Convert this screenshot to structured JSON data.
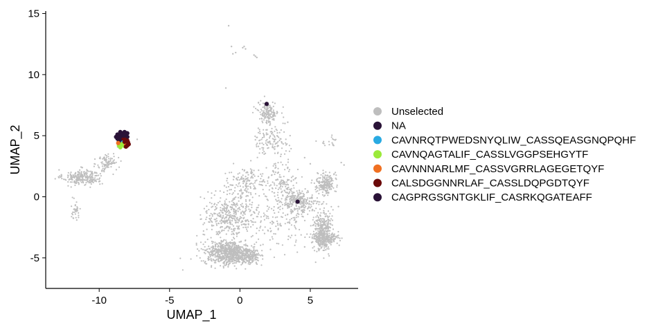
{
  "chart_data": {
    "type": "scatter",
    "xlabel": "UMAP_1",
    "ylabel": "UMAP_2",
    "xlim": [
      -13.8,
      8.4
    ],
    "ylim": [
      -7.5,
      15.2
    ],
    "xticks": [
      -10,
      -5,
      0,
      5
    ],
    "xtick_labels": [
      "-10",
      "-5",
      "0",
      "5"
    ],
    "yticks": [
      -5,
      0,
      5,
      10,
      15
    ],
    "ytick_labels": [
      "-5",
      "0",
      "5",
      "10",
      "15"
    ],
    "grid": false,
    "legend_position": "right",
    "legend": [
      {
        "label": "Unselected",
        "color": "#BEBEBE"
      },
      {
        "label": "NA",
        "color": "#2A1337"
      },
      {
        "label": "CAVNRQTPWEDSNYQLIW_CASSQEASGNQPQHF",
        "color": "#29AAE2"
      },
      {
        "label": "CAVNQAGTALIF_CASSLVGGPSEHGYTF",
        "color": "#9BEA3A"
      },
      {
        "label": "CAVNNNARLMF_CASSVGRRLAGEGETQYF",
        "color": "#F07021"
      },
      {
        "label": "CALSDGGNNRLAF_CASSLDQPGDTQYF",
        "color": "#6B0A0A"
      },
      {
        "label": "CAGPRGSGNTGKLIF_CASRKQGATEAFF",
        "color": "#2A1337"
      }
    ],
    "series": [
      {
        "legend_index": 0,
        "clusters": [
          {
            "cx": -11.2,
            "cy": 1.6,
            "sx": 1.1,
            "sy": 0.5,
            "n": 260
          },
          {
            "cx": -9.4,
            "cy": 2.8,
            "sx": 0.6,
            "sy": 0.6,
            "n": 90
          },
          {
            "cx": -11.7,
            "cy": -1.1,
            "sx": 0.3,
            "sy": 0.6,
            "n": 35
          },
          {
            "cx": -8.4,
            "cy": 4.5,
            "sx": 0.3,
            "sy": 0.4,
            "n": 50
          },
          {
            "cx": 2.0,
            "cy": 6.9,
            "sx": 0.6,
            "sy": 0.7,
            "n": 160
          },
          {
            "cx": 2.2,
            "cy": 4.6,
            "sx": 1.0,
            "sy": 0.9,
            "n": 120
          },
          {
            "cx": 3.0,
            "cy": 1.4,
            "sx": 0.8,
            "sy": 1.3,
            "n": 110
          },
          {
            "cx": 0.5,
            "cy": 1.2,
            "sx": 1.2,
            "sy": 1.0,
            "n": 140
          },
          {
            "cx": -0.6,
            "cy": -1.6,
            "sx": 1.6,
            "sy": 1.5,
            "n": 420
          },
          {
            "cx": -0.9,
            "cy": -4.6,
            "sx": 1.3,
            "sy": 0.8,
            "n": 650
          },
          {
            "cx": 0.6,
            "cy": -4.9,
            "sx": 0.7,
            "sy": 0.5,
            "n": 180
          },
          {
            "cx": 4.2,
            "cy": -0.4,
            "sx": 1.0,
            "sy": 0.7,
            "n": 230
          },
          {
            "cx": 6.1,
            "cy": 1.1,
            "sx": 0.5,
            "sy": 0.7,
            "n": 210
          },
          {
            "cx": 5.9,
            "cy": -2.8,
            "sx": 0.5,
            "sy": 1.4,
            "n": 330
          },
          {
            "cx": 6.0,
            "cy": -3.4,
            "sx": 0.8,
            "sy": 0.4,
            "n": 160
          },
          {
            "cx": 3.2,
            "cy": -1.5,
            "sx": 1.5,
            "sy": 2.0,
            "n": 160
          },
          {
            "cx": 6.3,
            "cy": 4.5,
            "sx": 0.6,
            "sy": 0.4,
            "n": 15
          }
        ],
        "points": [
          [
            -0.8,
            14.0
          ],
          [
            -0.6,
            12.3
          ],
          [
            0.2,
            12.2
          ],
          [
            0.4,
            12.1
          ],
          [
            -0.3,
            11.8
          ],
          [
            1.0,
            11.6
          ],
          [
            1.2,
            11.4
          ],
          [
            1.1,
            11.5
          ],
          [
            -0.5,
            11.7
          ],
          [
            0.3,
            12.3
          ],
          [
            -1.0,
            8.9
          ],
          [
            3.4,
            6.1
          ],
          [
            3.2,
            6.0
          ],
          [
            5.9,
            4.4
          ],
          [
            6.6,
            4.3
          ],
          [
            7.2,
            2.8
          ],
          [
            7.4,
            2.6
          ],
          [
            4.6,
            3.2
          ],
          [
            5.0,
            2.7
          ],
          [
            -1.1,
            0.9
          ],
          [
            -0.9,
            1.5
          ],
          [
            3.4,
            2.4
          ],
          [
            7.0,
            -0.8
          ],
          [
            4.6,
            -4.1
          ],
          [
            -7.3,
            4.7
          ]
        ]
      },
      {
        "legend_index": 1,
        "points": [
          [
            -8.6,
            5.0
          ],
          [
            -8.4,
            4.8
          ],
          [
            -8.3,
            5.2
          ],
          [
            -8.1,
            5.0
          ],
          [
            -8.2,
            5.3
          ],
          [
            -8.5,
            4.7
          ],
          [
            -8.7,
            5.1
          ],
          [
            -8.0,
            4.9
          ],
          [
            -8.3,
            4.6
          ],
          [
            -8.6,
            4.5
          ],
          [
            -8.1,
            4.5
          ],
          [
            -8.4,
            5.1
          ],
          [
            -8.2,
            4.3
          ],
          [
            -8.0,
            5.2
          ],
          [
            -8.8,
            4.9
          ],
          [
            -8.5,
            5.3
          ],
          [
            -8.3,
            4.9
          ]
        ]
      },
      {
        "legend_index": 2,
        "points": [
          [
            -8.3,
            4.45
          ]
        ]
      },
      {
        "legend_index": 3,
        "points": [
          [
            -8.6,
            4.2
          ],
          [
            -8.4,
            4.3
          ],
          [
            -8.2,
            4.15
          ],
          [
            -8.5,
            4.05
          ],
          [
            -8.3,
            4.35
          ]
        ]
      },
      {
        "legend_index": 4,
        "points": [
          [
            -8.65,
            4.4
          ],
          [
            -8.1,
            4.25
          ]
        ]
      },
      {
        "legend_index": 5,
        "points": [
          [
            -8.2,
            4.5
          ],
          [
            -8.0,
            4.6
          ],
          [
            -7.9,
            4.3
          ],
          [
            -8.1,
            4.1
          ],
          [
            -8.3,
            4.8
          ],
          [
            -8.0,
            4.2
          ],
          [
            -8.2,
            4.7
          ],
          [
            -7.95,
            4.45
          ]
        ]
      },
      {
        "legend_index": 6,
        "points": [
          [
            -8.5,
            4.9
          ],
          [
            -8.35,
            5.15
          ],
          [
            -8.15,
            5.25
          ],
          [
            -8.25,
            5.0
          ],
          [
            -8.7,
            4.75
          ],
          [
            1.9,
            7.6
          ],
          [
            4.1,
            -0.4
          ]
        ]
      }
    ]
  }
}
